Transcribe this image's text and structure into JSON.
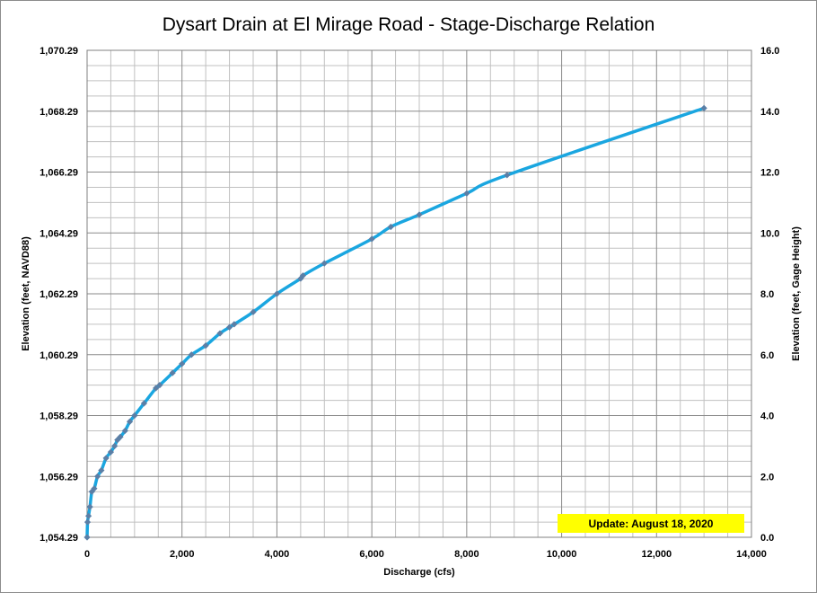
{
  "chart_data": {
    "type": "line",
    "title": "Dysart Drain at El Mirage Road - Stage-Discharge Relation",
    "xlabel": "Discharge  (cfs)",
    "ylabel_left": "Elevation (feet, NAVD88)",
    "ylabel_right": "Elevation (feet, Gage Height)",
    "xlim": [
      0,
      14000
    ],
    "ylim_left": [
      1054.29,
      1070.29
    ],
    "ylim_right": [
      0.0,
      16.0
    ],
    "x_ticks": [
      "0",
      "2,000",
      "4,000",
      "6,000",
      "8,000",
      "10,000",
      "12,000",
      "14,000"
    ],
    "y_left_ticks": [
      "1,054.29",
      "1,056.29",
      "1,058.29",
      "1,060.29",
      "1,062.29",
      "1,064.29",
      "1,066.29",
      "1,068.29",
      "1,070.29"
    ],
    "y_right_ticks": [
      "0.0",
      "2.0",
      "4.0",
      "6.0",
      "8.0",
      "10.0",
      "12.0",
      "14.0",
      "16.0"
    ],
    "grid": true,
    "line_color": "#1aa6e0",
    "marker_color": "#5b7fa6",
    "series": [
      {
        "x": [
          0,
          10,
          30,
          60,
          100,
          150,
          220,
          300,
          400,
          500,
          580,
          640,
          700,
          800,
          900,
          1000,
          1200,
          1450,
          1530,
          1800,
          2000,
          2200,
          2500,
          2800,
          3000,
          3100,
          3500,
          4000,
          4500,
          4550,
          5000,
          6000,
          6400,
          7000,
          8000,
          8850,
          13000
        ],
        "y": [
          0.0,
          0.5,
          0.7,
          1.0,
          1.5,
          1.6,
          2.0,
          2.2,
          2.6,
          2.8,
          3.0,
          3.2,
          3.3,
          3.5,
          3.8,
          4.0,
          4.4,
          4.9,
          5.0,
          5.4,
          5.7,
          6.0,
          6.3,
          6.7,
          6.9,
          7.0,
          7.4,
          8.0,
          8.5,
          8.6,
          9.0,
          9.8,
          10.2,
          10.6,
          11.3,
          11.9,
          14.1
        ]
      }
    ]
  },
  "update_note": "Update: August 18, 2020",
  "note_background": "#ffff00"
}
